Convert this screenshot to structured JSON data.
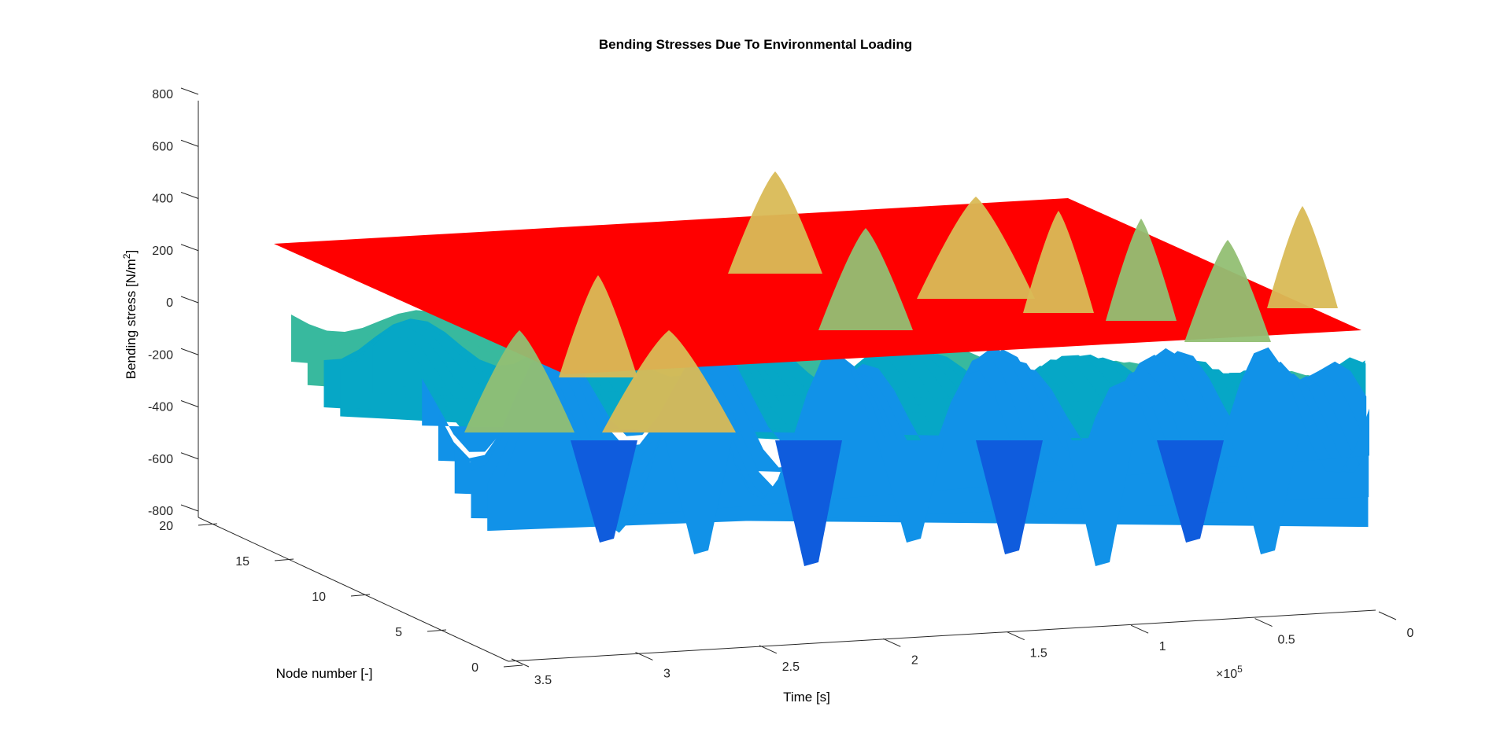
{
  "chart_data": {
    "type": "surface",
    "title": "Bending Stresses Due To Environmental Loading",
    "xlabel": "Time [s]",
    "ylabel": "Node number [-]",
    "zlabel": "Bending stress [N/m",
    "zlabel_superscript": "2",
    "zlabel_suffix": "]",
    "x_exponent_label": "×10",
    "x_exponent_power": "5",
    "xlim": [
      0,
      3.5
    ],
    "ylim": [
      0,
      20
    ],
    "zlim": [
      -800,
      800
    ],
    "x_ticks": [
      "3.5",
      "3",
      "2.5",
      "2",
      "1.5",
      "1",
      "0.5",
      "0"
    ],
    "y_ticks": [
      "0",
      "5",
      "10",
      "15",
      "20"
    ],
    "z_ticks": [
      "800",
      "600",
      "400",
      "200",
      "0",
      "-200",
      "-400",
      "-600",
      "-800"
    ],
    "threshold_plane": {
      "z": 250,
      "color": "#ff0000"
    },
    "colormap": "parula",
    "surface_z_range": [
      -650,
      550
    ],
    "grid": false
  }
}
